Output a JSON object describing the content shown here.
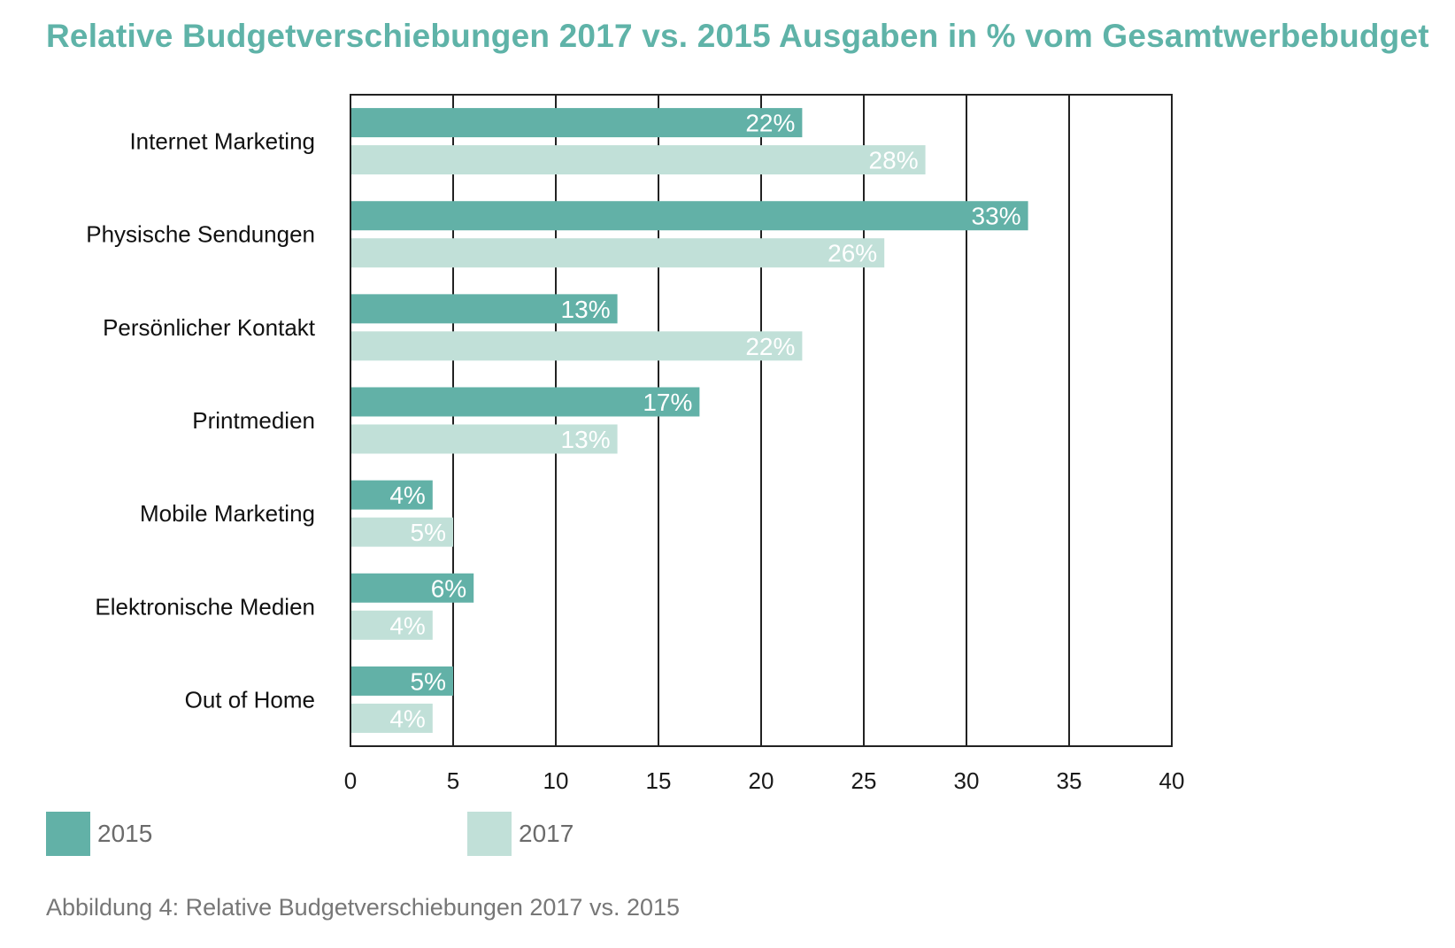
{
  "chart_data": {
    "type": "bar",
    "orientation": "horizontal",
    "title": "Relative Budgetverschiebungen 2017 vs. 2015 Ausgaben in % vom Gesamtwerbebudget",
    "categories": [
      "Internet Marketing",
      "Physische Sendungen",
      "Persönlicher Kontakt",
      "Printmedien",
      "Mobile Marketing",
      "Elektronische Medien",
      "Out of Home"
    ],
    "series": [
      {
        "name": "2015",
        "values": [
          22,
          33,
          13,
          17,
          4,
          6,
          5
        ],
        "labels": [
          "22%",
          "33%",
          "13%",
          "17%",
          "4%",
          "6%",
          "5%"
        ],
        "color": "#62b1a7"
      },
      {
        "name": "2017",
        "values": [
          28,
          26,
          22,
          13,
          5,
          4,
          4
        ],
        "labels": [
          "28%",
          "26%",
          "22%",
          "13%",
          "5%",
          "4%",
          "4%"
        ],
        "color": "#c1e0d8"
      }
    ],
    "xlim": [
      0,
      40
    ],
    "xticks": [
      "0",
      "5",
      "10",
      "15",
      "20",
      "25",
      "30",
      "35",
      "40"
    ],
    "grid": true,
    "legend": "bottom-left"
  },
  "caption": "Abbildung 4: Relative Budgetverschiebungen 2017 vs. 2015"
}
